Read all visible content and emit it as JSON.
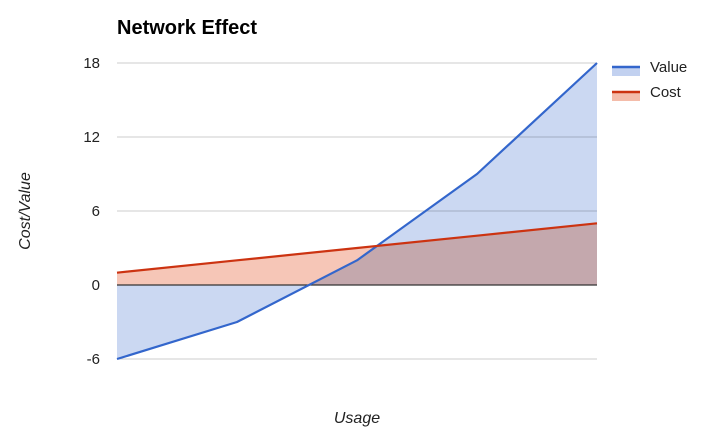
{
  "chart_data": {
    "type": "area",
    "title": "Network Effect",
    "xlabel": "Usage",
    "ylabel": "Cost/Value",
    "x": [
      0,
      1,
      2,
      3,
      4
    ],
    "ylim": [
      -6,
      18
    ],
    "yticks": [
      18,
      12,
      6,
      0,
      -6
    ],
    "grid": true,
    "legend_position": "right",
    "series": [
      {
        "name": "Value",
        "values": [
          -6,
          -3,
          2,
          9,
          18
        ],
        "color": "#3366cc",
        "fill": "#c2d1f0"
      },
      {
        "name": "Cost",
        "values": [
          1,
          2,
          3,
          4,
          5
        ],
        "color": "#cc3311",
        "fill": "#f4bcaa"
      }
    ]
  }
}
